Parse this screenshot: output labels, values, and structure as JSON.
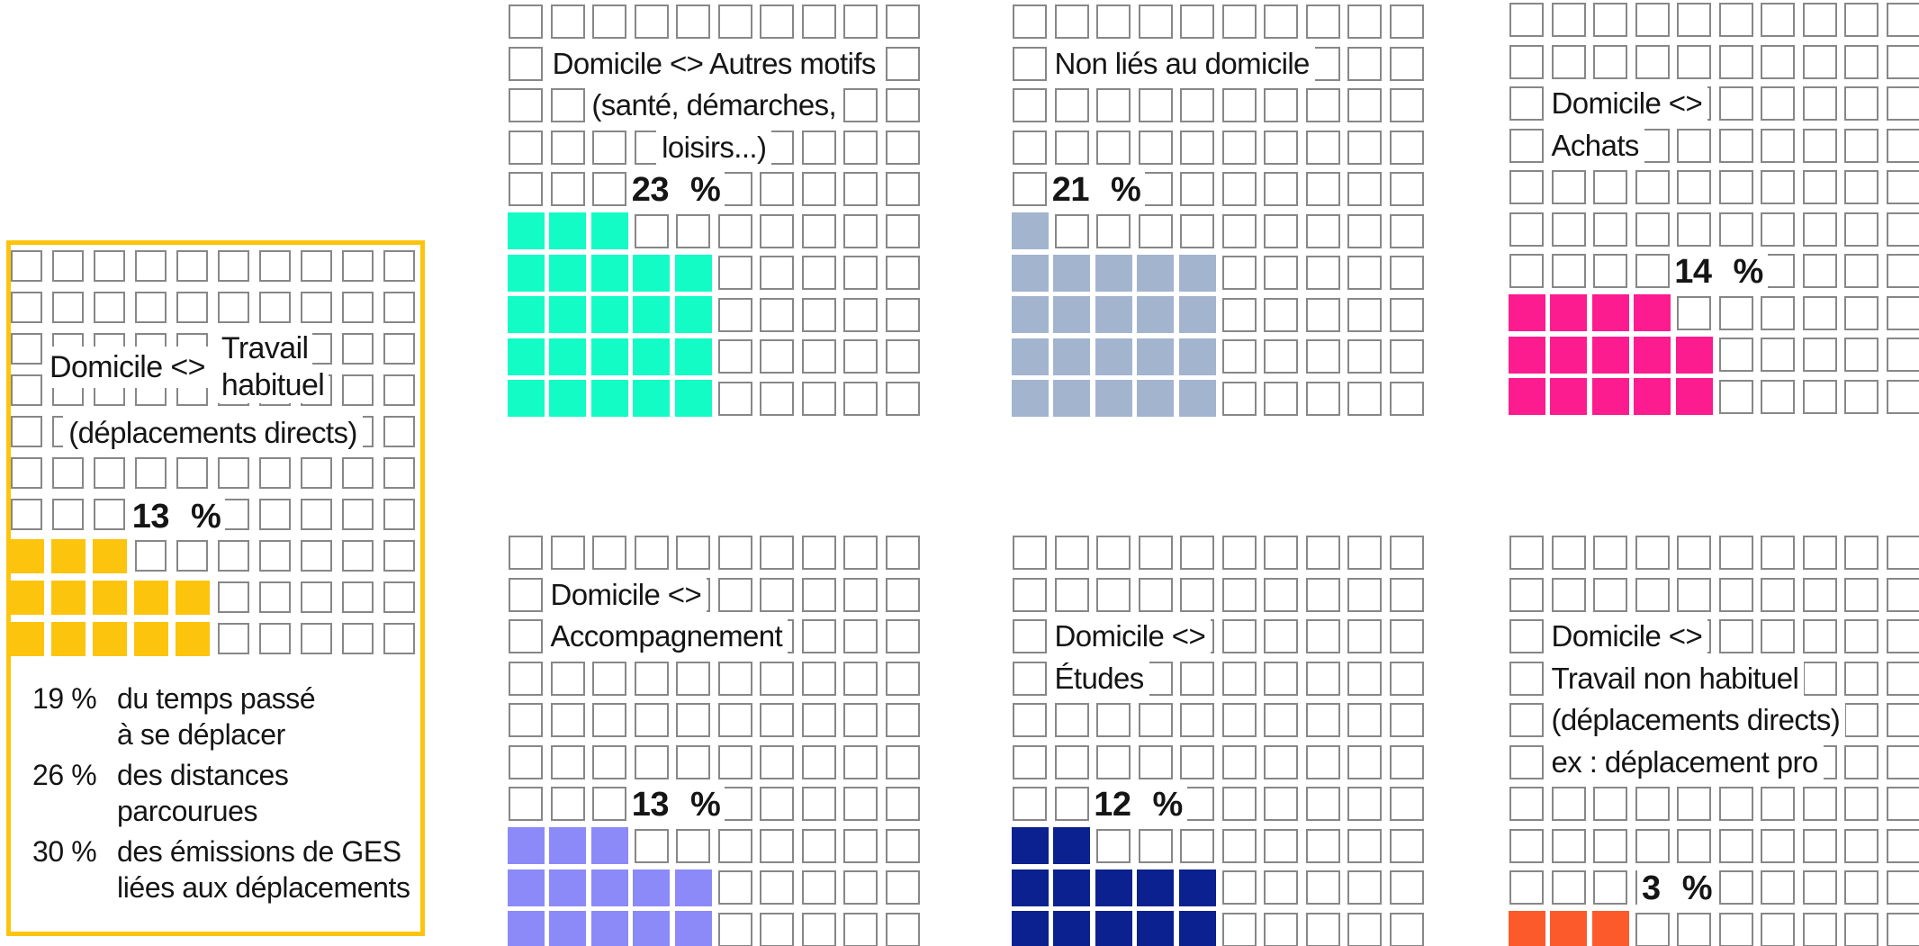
{
  "palette": {
    "grid_border": "#878787",
    "text": "#151515",
    "highlight_box_border": "#FDC40D"
  },
  "chart_data": {
    "type": "waffle",
    "grid": {
      "rows": 10,
      "cols": 10,
      "square_unit_percent": 1,
      "gridlines": "gray squares",
      "legend": "none"
    },
    "series": [
      {
        "label": "Domicile <> Travail habituel (déplacements directs)",
        "value": 13,
        "color": "#FDC40D"
      },
      {
        "label": "Domicile <> Autres motifs (santé, démarches, loisirs...)",
        "value": 23,
        "color": "#13FCC6"
      },
      {
        "label": "Non liés au domicile",
        "value": 21,
        "color": "#A3B4CF"
      },
      {
        "label": "Domicile <> Achats",
        "value": 14,
        "color": "#FD1B90"
      },
      {
        "label": "Domicile <> Accompagnement",
        "value": 13,
        "color": "#8B8AF8"
      },
      {
        "label": "Domicile <> Études",
        "value": 12,
        "color": "#0A218F"
      },
      {
        "label": "Domicile <> Travail non habituel (déplacements directs) ex : déplacement pro",
        "value": 3,
        "color": "#FD5A2B"
      }
    ],
    "highlight_stats": [
      {
        "value": "19 %",
        "lines": [
          "du temps passé",
          "à se déplacer"
        ]
      },
      {
        "value": "26 %",
        "lines": [
          "des distances",
          "parcourues"
        ]
      },
      {
        "value": "30 %",
        "lines": [
          "des émissions de GES",
          "liées aux déplacements"
        ]
      }
    ]
  },
  "charts": [
    {
      "id": "domicile-travail-habituel",
      "highlighted": true,
      "title_main": "Domicile <>",
      "title_stack": [
        "Travail",
        "habituel"
      ],
      "subtitle": "(déplacements directs)",
      "value": 13,
      "value_label": "13 %",
      "color": "#FDC40D",
      "value_pos": {
        "row": 7,
        "col": 4
      },
      "stats": [
        {
          "value": "19 %",
          "lines": [
            "du temps passé",
            "à se déplacer"
          ]
        },
        {
          "value": "26 %",
          "lines": [
            "des distances",
            "parcourues"
          ]
        },
        {
          "value": "30 %",
          "lines": [
            "des émissions de GES",
            "liées aux déplacements"
          ]
        }
      ]
    },
    {
      "id": "domicile-autres-motifs",
      "title_lines": [
        "Domicile <> Autres motifs",
        "(santé, démarches,",
        "loisirs...)"
      ],
      "title_row": 2,
      "title_align": "center",
      "value": 23,
      "value_label": "23 %",
      "color": "#13FCC6",
      "value_pos": {
        "row": 5,
        "col": 4
      }
    },
    {
      "id": "non-lies-au-domicile",
      "title_lines": [
        "Non liés au domicile"
      ],
      "title_row": 2,
      "title_align": "left",
      "title_col": 2,
      "value": 21,
      "value_label": "21 %",
      "color": "#A3B4CF",
      "value_pos": {
        "row": 5,
        "col": 2
      }
    },
    {
      "id": "domicile-achats",
      "title_lines": [
        "Domicile <>",
        "Achats"
      ],
      "title_row": 3,
      "title_align": "left",
      "title_col": 2,
      "value": 14,
      "value_label": "14 %",
      "color": "#FD1B90",
      "value_pos": {
        "row": 7,
        "col": 5
      }
    },
    {
      "id": "domicile-accompagnement",
      "title_lines": [
        "Domicile <>",
        "Accompagnement"
      ],
      "title_row": 2,
      "title_align": "left",
      "title_col": 2,
      "value": 13,
      "value_label": "13 %",
      "color": "#8B8AF8",
      "value_pos": {
        "row": 7,
        "col": 4
      }
    },
    {
      "id": "domicile-etudes",
      "title_lines": [
        "Domicile <>",
        "Études"
      ],
      "title_row": 3,
      "title_align": "left",
      "title_col": 2,
      "value": 12,
      "value_label": "12 %",
      "color": "#0A218F",
      "value_pos": {
        "row": 7,
        "col": 3
      }
    },
    {
      "id": "domicile-travail-non-habituel",
      "title_lines": [
        "Domicile <>",
        "Travail non habituel",
        "(déplacements directs)",
        "ex : déplacement pro"
      ],
      "title_row": 3,
      "title_align": "left",
      "title_col": 2,
      "value": 3,
      "value_label": "3 %",
      "color": "#FD5A2B",
      "value_pos": {
        "row": 9,
        "col": 4
      }
    }
  ]
}
